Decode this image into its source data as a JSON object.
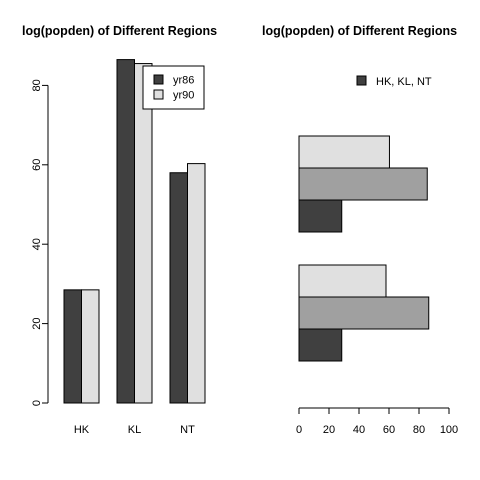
{
  "chart_data": [
    {
      "type": "bar",
      "orientation": "vertical",
      "mode": "grouped",
      "title": "log(popden) of Different Regions",
      "categories": [
        "HK",
        "KL",
        "NT"
      ],
      "series": [
        {
          "name": "yr86",
          "values": [
            28.5,
            86.5,
            58.0
          ],
          "color": "#404040"
        },
        {
          "name": "yr90",
          "values": [
            28.5,
            85.5,
            60.3
          ],
          "color": "#e0e0e0"
        }
      ],
      "ylim": [
        0,
        90
      ],
      "yticks": [
        0,
        20,
        40,
        60,
        80
      ],
      "legend": "top-right"
    },
    {
      "type": "bar",
      "orientation": "horizontal",
      "mode": "grouped",
      "title": "log(popden) of Different Regions",
      "groups": [
        {
          "values": [
            28.5,
            86.5,
            58.0
          ]
        },
        {
          "values": [
            28.5,
            85.5,
            60.3
          ]
        }
      ],
      "segment_colors": [
        "#404040",
        "#a0a0a0",
        "#e0e0e0"
      ],
      "xlim": [
        0,
        100
      ],
      "xticks": [
        0,
        20,
        40,
        60,
        80,
        100
      ],
      "legend": {
        "label": "HK, KL, NT",
        "color": "#404040",
        "position": "top-right"
      }
    }
  ]
}
